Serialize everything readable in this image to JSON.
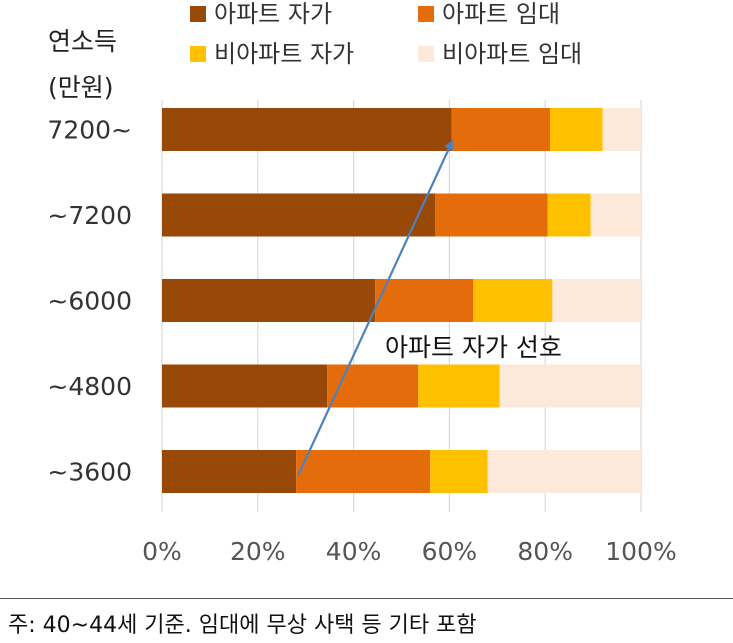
{
  "chart_data": {
    "type": "bar",
    "orientation": "horizontal",
    "stacked": true,
    "percent": true,
    "ylabel_lines": [
      "연소득",
      "(만원)"
    ],
    "categories": [
      "7200~",
      "~7200",
      "~6000",
      "~4800",
      "~3600"
    ],
    "series": [
      {
        "name": "아파트 자가",
        "color": "#984807",
        "values": [
          60.5,
          57,
          44.5,
          34.5,
          28
        ]
      },
      {
        "name": "아파트 임대",
        "color": "#E46C0A",
        "values": [
          20.5,
          23.5,
          20.5,
          19,
          28
        ]
      },
      {
        "name": "비아파트 자가",
        "color": "#FFC000",
        "values": [
          11,
          9,
          16.5,
          17,
          12
        ]
      },
      {
        "name": "비아파트 임대",
        "color": "#FDE9D9",
        "values": [
          8,
          10.5,
          18.5,
          29.5,
          32
        ]
      }
    ],
    "xlim": [
      0,
      100
    ],
    "xticks": [
      "0%",
      "20%",
      "40%",
      "60%",
      "80%",
      "100%"
    ],
    "grid": true,
    "legend_position": "top",
    "annotation": {
      "text": "아파트 자가 선호",
      "arrow_from": {
        "category": "~3600",
        "value": 28
      },
      "arrow_to": {
        "category": "7200~",
        "value": 61
      }
    }
  },
  "footnote": "주: 40~44세 기준. 임대에 무상 사택 등 기타 포함"
}
